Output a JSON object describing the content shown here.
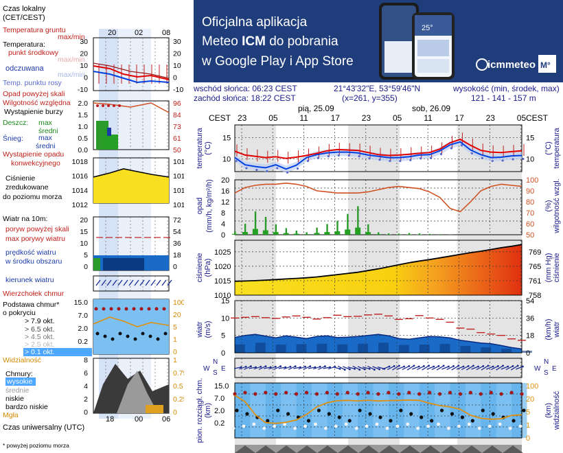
{
  "banner": {
    "line1": "Oficjalna aplikacja",
    "line2a": "Meteo ",
    "line2b": "ICM",
    "line2c": " do pobrania",
    "line3": "w Google Play i App Store",
    "logo": "icmmeteo",
    "logo_badge": "M°",
    "phone_text": "25°",
    "colors": {
      "background": "#1f3d7a",
      "text": "#ffffff"
    }
  },
  "info": {
    "sunrise": "wschód słońca: 06:23 CEST",
    "sunset": "zachód słońca: 18:22 CEST",
    "coords": "21°43'32\"E, 53°59'46\"N",
    "grid": "(x=261,  y=355)",
    "elev_label": "wysokość (min, środek, max)",
    "elev_values": "121 - 141 - 157 m"
  },
  "legend": {
    "local_time": "Czas lokalny (CET/CEST)",
    "local_time_1": "Czas lokalny",
    "local_time_2": "(CET/CEST)",
    "local_ticks": [
      "20",
      "02",
      "08"
    ],
    "ground_temp": "Temperatura gruntu",
    "maxmin": "max/min",
    "temperature": "Temperatura:",
    "midpoint": "punkt środkowy",
    "max_min_faded": "max/min",
    "felt": "odczuwana",
    "max_min_faded2": "max/min",
    "dew": "Temp. punktu rosy",
    "precip_over": "Opad powyżej skali",
    "humidity": "Wilgotność względna",
    "storm": "Wystąpienie burzy",
    "rain": "Deszcz:",
    "max": "max",
    "mean": "średni",
    "snow": "Śnieg:",
    "max2": "max",
    "mean2": "średni",
    "precip_event_1": "Wystąpienie opadu",
    "precip_event_2": "konwekcyjnego",
    "pressure_1": "Ciśnienie",
    "pressure_2": "zredukowane",
    "pressure_3": "do poziomu morza",
    "wind10": "Wiatr na 10m:",
    "gust_over": "poryw powyżej skali",
    "gust_max": "max porywy wiatru",
    "wind_speed_1": "prędkość wiatru",
    "wind_speed_2": "w środku obszaru",
    "wind_dir": "kierunek wiatru",
    "cloud_top": "Wierzchołek chmur",
    "cloud_base_1": "Podstawa chmur*",
    "cloud_base_2": "o pokryciu",
    "okt1": "> 7.9 okt.",
    "okt2": "> 6.5 okt.",
    "okt3": "> 4.5 okt.",
    "okt4": "> 2.5 okt.",
    "okt5": "> 0.1 okt.",
    "visibility": "Widzialność",
    "clouds": "Chmury:",
    "high": "wysokie",
    "mid": "średnie",
    "low": "niskie",
    "very_low": "bardzo niskie",
    "fog": "Mgła",
    "utc": "Czas uniwersalny (UTC)",
    "utc_ticks": [
      "18",
      "00",
      "06"
    ],
    "footnote": "* powyżej poziomu morza",
    "temp_axis": [
      "30",
      "20",
      "10",
      "0",
      "-10"
    ],
    "temp_axis_r": [
      "30",
      "20",
      "10",
      "0",
      "-10"
    ],
    "rain_axis": [
      "2.0",
      "1.5",
      "1.0",
      "0.5",
      "0.0"
    ],
    "hum_axis": [
      "96",
      "84",
      "73",
      "61",
      "50"
    ],
    "press_axis_l": [
      "1018",
      "1016",
      "1014",
      "1012"
    ],
    "press_axis_r": [
      "1018",
      "1016",
      "1014",
      "1012"
    ],
    "wind_axis_l": [
      "20",
      "15",
      "10",
      "5",
      "0"
    ],
    "wind_axis_r": [
      "72",
      "54",
      "36",
      "18",
      "0"
    ],
    "cloud_axis_l": [
      "15.0",
      "7.0",
      "2.0",
      "0.2"
    ],
    "vis_axis_r": [
      "100",
      "20",
      "5",
      "1",
      "0"
    ],
    "cc_axis_l": [
      "8",
      "6",
      "4",
      "2",
      "0"
    ],
    "cc_axis_r": [
      "1",
      "0.75",
      "0.5",
      "0.25",
      "0"
    ]
  },
  "chart_data": {
    "type": "line",
    "header": {
      "tz": "CEST",
      "day1": "pią, 25.09",
      "day2": "sob, 26.09"
    },
    "x_ticks": [
      "23",
      "05",
      "11",
      "17",
      "23",
      "05",
      "11",
      "17",
      "23",
      "05"
    ],
    "panels": {
      "temperature": {
        "ylabel": "temperatura (°C)",
        "ylabel_l": "temperatura",
        "ylabel_r": "temperatura",
        "unit": "(°C)",
        "ticks_l": [
          "15",
          "10"
        ],
        "ticks_r": [
          "15",
          "10"
        ],
        "ylim": [
          7,
          18
        ],
        "series": [
          {
            "color": "#e00000",
            "values": [
              11.8,
              10.9,
              10.6,
              10.3,
              10.5,
              10.1,
              10.4,
              10.8,
              11.3,
              11.9,
              12.2,
              12.1,
              12.0,
              11.5,
              11.0,
              10.8,
              10.9,
              11.1,
              11.3,
              11.5,
              12.3,
              13.8,
              14.6,
              13.2,
              12.0,
              11.6,
              11.5,
              11.7,
              11.9
            ]
          },
          {
            "color": "#0040e0",
            "values": [
              10.3,
              8.6,
              8.2,
              7.9,
              8.6,
              7.6,
              8.5,
              10.3,
              11.0,
              11.4,
              11.6,
              11.6,
              11.4,
              10.9,
              10.6,
              10.3,
              10.3,
              10.5,
              10.9,
              11.0,
              11.9,
              13.3,
              14.0,
              12.1,
              11.0,
              10.3,
              10.4,
              10.7,
              10.8
            ]
          }
        ]
      },
      "precipitation": {
        "ylabel_l": "opad",
        "unit_l": "(mm/h, kg/m²/h)",
        "ylabel_r": "wilgotność wzgl.",
        "unit_r": "(%)",
        "ticks_l": [
          "20",
          "16",
          "12",
          "8",
          "4",
          "0"
        ],
        "ticks_r": [
          "100",
          "90",
          "80",
          "70",
          "60",
          "50"
        ],
        "ylim": [
          0,
          20
        ],
        "humidity": [
          88,
          93,
          95,
          96,
          96,
          97,
          96,
          94,
          90,
          89,
          88,
          88,
          88,
          89,
          91,
          93,
          94,
          93,
          92,
          89,
          84,
          74,
          71,
          80,
          90,
          94,
          96,
          95,
          94
        ],
        "rain_max": [
          1.2,
          4.0,
          8.5,
          6.5,
          3.8,
          2.4,
          1.5,
          0.9,
          2.6,
          3.9,
          5.1,
          7.6,
          10.4,
          3.8,
          0.9,
          0.5,
          0.4,
          0.6,
          0.5,
          0.3,
          0.2,
          0.1,
          0.0,
          0.0,
          0.0,
          0.0,
          0.0,
          0.0,
          0.0
        ]
      },
      "pressure": {
        "ylabel_l": "ciśnienie",
        "unit_l": "(hPa)",
        "ylabel_r": "ciśnienie",
        "unit_r": "(mm Hg)",
        "ticks_l": [
          "1025",
          "1020",
          "1015",
          "1010"
        ],
        "ticks_r": [
          "769",
          "765",
          "761",
          "758"
        ],
        "ylim": [
          1010,
          1029
        ],
        "values": [
          1014.8,
          1014.9,
          1015.0,
          1015.2,
          1015.4,
          1015.6,
          1015.8,
          1016.0,
          1016.3,
          1016.7,
          1017.1,
          1017.5,
          1017.9,
          1018.5,
          1019.1,
          1019.8,
          1020.5,
          1021.2,
          1021.8,
          1022.3,
          1022.9,
          1023.5,
          1024.1,
          1024.7,
          1025.2,
          1025.8,
          1026.4,
          1026.9,
          1027.5
        ]
      },
      "wind": {
        "ylabel_l": "wiatr",
        "unit_l": "(m/s)",
        "ylabel_r": "wiatr",
        "unit_r": "(km/h)",
        "ticks_l": [
          "15",
          "10",
          "5",
          "0"
        ],
        "ticks_r": [
          "54",
          "36",
          "18",
          "0"
        ],
        "ylim": [
          0,
          15
        ],
        "gust": [
          10.0,
          10.2,
          10.4,
          10.1,
          9.9,
          10.3,
          10.6,
          10.2,
          9.7,
          10.1,
          10.8,
          10.4,
          10.5,
          10.9,
          11.1,
          10.6,
          9.6,
          9.8,
          10.7,
          10.0,
          9.6,
          8.8,
          7.1,
          6.8,
          5.8,
          5.4,
          5.0,
          4.0,
          3.6
        ],
        "speed": [
          4.4,
          5.0,
          5.3,
          4.8,
          4.3,
          4.9,
          4.5,
          4.1,
          4.7,
          4.9,
          4.4,
          4.5,
          4.7,
          5.0,
          5.3,
          4.9,
          4.1,
          3.9,
          4.3,
          4.7,
          4.6,
          4.3,
          3.6,
          3.2,
          2.8,
          2.6,
          2.1,
          1.5,
          1.1
        ]
      },
      "direction": {
        "labels": [
          "W",
          "N",
          "S",
          "E"
        ]
      },
      "clouds": {
        "ylabel": "pion. rozciągł. chm.",
        "unit": "(km)",
        "ylabel_r": "widzialność",
        "unit_r": "(km)",
        "ticks_l": [
          "15.0",
          "7.0",
          "2.0",
          "0.2"
        ],
        "ticks_r": [
          "100",
          "20",
          "5",
          "1",
          "0"
        ],
        "visibility": [
          35,
          20,
          6,
          2.6,
          2.4,
          2.7,
          3.5,
          6.2,
          12.5,
          18.2,
          21.7,
          22.4,
          21.4,
          22.8,
          21.3,
          22.1,
          22.5,
          23.1,
          22.4,
          17.4,
          14.1,
          12.5,
          10.1,
          5.7,
          4.2,
          3.8,
          4.0,
          5.6,
          6.0
        ]
      }
    }
  }
}
